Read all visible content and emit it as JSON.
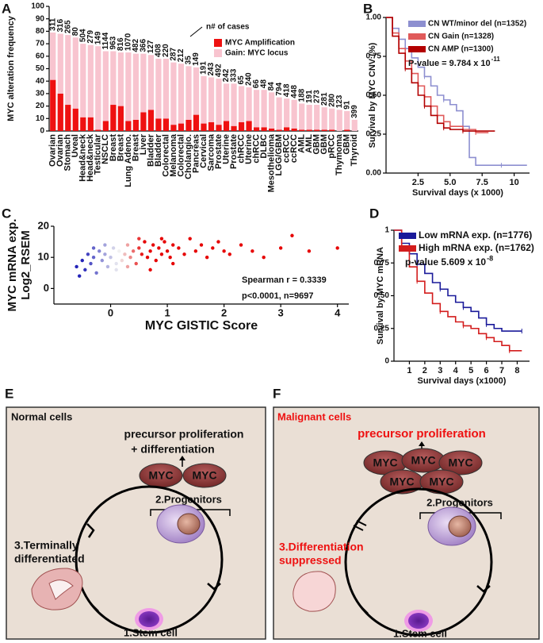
{
  "chart_data": [
    {
      "panel": "A",
      "type": "bar",
      "stacked": true,
      "ylabel": "MYC alteration frequency",
      "categories": [
        "Ovarian",
        "Ovarian",
        "Stomach",
        "Uveal",
        "Head&neck",
        "Head&neck",
        "Testicular",
        "NSCLC",
        "Breast",
        "Breast",
        "Lung Adeno.",
        "Breast",
        "Liver",
        "Bladder",
        "Bladder",
        "Colorectal",
        "Melanoma",
        "Colorectal",
        "Cholangio.",
        "Pancreas",
        "Cervical",
        "Sarcoma",
        "Prostate",
        "Uterine",
        "Prostate",
        "chRCC",
        "Uterine",
        "chRCC",
        "DLBC",
        "Mesothelioma",
        "LGG/GBM",
        "ccRCC",
        "ccRCC",
        "AML",
        "AML",
        "GBM",
        "GBM",
        "pRCC",
        "Thymoma",
        "GBM",
        "Thyroid"
      ],
      "series": [
        {
          "name": "MYC Amplification",
          "color": "#ee1111",
          "values": [
            41,
            30,
            21,
            18,
            11,
            11,
            1,
            8,
            21,
            20,
            8,
            9,
            15,
            17,
            10,
            10,
            5,
            6,
            9,
            13,
            6,
            7,
            5,
            8,
            4,
            7,
            8,
            3,
            3,
            2,
            1,
            3,
            2,
            1,
            1,
            1,
            1,
            1,
            0,
            1,
            0
          ]
        },
        {
          "name": "Gain: MYC locus",
          "color": "#f8c4cf",
          "values": [
            38,
            48,
            56,
            57,
            59,
            58,
            67,
            56,
            43,
            43,
            55,
            53,
            47,
            44,
            48,
            48,
            50,
            48,
            43,
            38,
            38,
            36,
            37,
            30,
            34,
            29,
            27,
            30,
            30,
            29,
            26,
            23,
            23,
            21,
            20,
            20,
            18,
            17,
            17,
            15,
            9
          ]
        }
      ],
      "cases": [
        311,
        316,
        265,
        80,
        504,
        279,
        149,
        1144,
        963,
        816,
        1070,
        482,
        366,
        127,
        408,
        220,
        287,
        212,
        35,
        149,
        191,
        243,
        492,
        242,
        333,
        65,
        240,
        66,
        48,
        84,
        794,
        418,
        448,
        188,
        191,
        273,
        281,
        280,
        123,
        91,
        399
      ],
      "annotation": "n# of cases",
      "ylim": [
        0,
        100
      ],
      "yticks": [
        0,
        10,
        20,
        30,
        40,
        50,
        60,
        70,
        80,
        90,
        100
      ],
      "legend": "upper right"
    },
    {
      "panel": "B",
      "type": "survival",
      "ylabel": "Survival by MYC CNV (%)",
      "xlabel": "Survival days (x 1000)",
      "series": [
        {
          "name": "CN WT/minor del (n=1352)",
          "color": "#8d8fd0",
          "x": [
            0,
            0.5,
            1,
            1.5,
            2,
            2.5,
            3,
            3.5,
            4,
            4.5,
            5,
            5.5,
            6,
            6.5,
            7,
            9,
            11
          ],
          "values": [
            1,
            0.93,
            0.86,
            0.8,
            0.74,
            0.68,
            0.62,
            0.56,
            0.5,
            0.47,
            0.44,
            0.4,
            0.3,
            0.1,
            0.05,
            0.05,
            0.05
          ]
        },
        {
          "name": "CN Gain (n=1328)",
          "color": "#e05a5a",
          "x": [
            0,
            0.5,
            1,
            1.5,
            2,
            2.5,
            3,
            3.5,
            4,
            4.5,
            5,
            6,
            7,
            8
          ],
          "values": [
            1,
            0.9,
            0.8,
            0.72,
            0.64,
            0.56,
            0.49,
            0.43,
            0.37,
            0.33,
            0.3,
            0.28,
            0.26,
            0.26
          ]
        },
        {
          "name": "CN AMP (n=1300)",
          "color": "#b30000",
          "x": [
            0,
            0.5,
            1,
            1.5,
            2,
            2.5,
            3,
            3.5,
            4,
            4.5,
            5,
            5.5,
            6,
            7,
            8.5
          ],
          "values": [
            1,
            0.88,
            0.77,
            0.67,
            0.58,
            0.5,
            0.43,
            0.37,
            0.32,
            0.29,
            0.28,
            0.28,
            0.27,
            0.27,
            0.27
          ]
        }
      ],
      "p_value": "P-value = 9.784 x 10",
      "p_exponent": "-11",
      "xlim": [
        0,
        11.2
      ],
      "xticks": [
        2.5,
        {
          "value": 5,
          "label": "5.0"
        },
        7.5,
        10
      ],
      "ylim": [
        0,
        1
      ],
      "yticks": [
        {
          "value": 0,
          "label": "0.00"
        },
        0.25,
        {
          "value": 0.5,
          "label": "0.50"
        },
        0.75,
        {
          "value": 1,
          "label": "1.00"
        }
      ],
      "legend": "upper right"
    },
    {
      "panel": "C",
      "type": "scatter",
      "ylabel": [
        "MYC mRNA exp.",
        "Log2_RSEM"
      ],
      "xlabel": "MYC GISTIC Score",
      "x": [
        -0.6,
        -0.55,
        -0.5,
        -0.45,
        -0.4,
        -0.35,
        -0.3,
        -0.25,
        -0.2,
        -0.15,
        -0.1,
        -0.05,
        0,
        0.05,
        0.1,
        0.15,
        0.2,
        0.25,
        0.3,
        0.35,
        0.4,
        0.45,
        0.5,
        0.55,
        0.6,
        0.65,
        0.7,
        0.75,
        0.8,
        0.85,
        0.9,
        0.95,
        1,
        1.05,
        1.1,
        1.2,
        1.3,
        1.4,
        1.5,
        1.6,
        1.7,
        1.8,
        1.9,
        2,
        2.1,
        2.3,
        2.5,
        2.7,
        3,
        3.2,
        3.5,
        4,
        -0.3,
        -0.1,
        0.1,
        0.3,
        0.5,
        0.7,
        0.9,
        1.1
      ],
      "values": [
        7,
        4,
        9,
        6,
        11,
        8,
        10,
        5,
        12,
        9,
        11,
        7,
        10,
        13,
        8,
        12,
        9,
        11,
        14,
        10,
        12,
        8,
        13,
        11,
        15,
        10,
        12,
        14,
        9,
        13,
        11,
        15,
        12,
        10,
        14,
        13,
        11,
        16,
        12,
        14,
        10,
        13,
        15,
        12,
        11,
        14,
        12,
        10,
        13,
        17,
        12,
        13,
        13,
        14,
        6,
        7,
        16,
        6,
        16,
        8
      ],
      "color_stops": [
        [
          -0.5,
          "#2424b8"
        ],
        [
          0.15,
          "#f2f2f2"
        ],
        [
          0.6,
          "#e60000"
        ]
      ],
      "annotations": [
        "Spearman r  = 0.3339",
        "p<0.0001, n=9697"
      ],
      "xlim": [
        -1,
        4.2
      ],
      "xticks": [
        0,
        1,
        2,
        3,
        4
      ],
      "ylim": [
        -5,
        20
      ],
      "yticks": [
        0,
        10,
        20
      ]
    },
    {
      "panel": "D",
      "type": "survival",
      "ylabel": "Survival by MYC mRNA",
      "xlabel": "Survival days (x1000)",
      "series": [
        {
          "name": "Low mRNA exp. (n=1776)",
          "color": "#1a1a9a",
          "x": [
            0,
            0.5,
            1,
            1.5,
            2,
            2.5,
            3,
            3.5,
            4,
            4.5,
            5,
            5.5,
            6,
            6.5,
            7,
            8.3
          ],
          "values": [
            1,
            0.9,
            0.82,
            0.74,
            0.67,
            0.6,
            0.55,
            0.5,
            0.45,
            0.41,
            0.38,
            0.33,
            0.28,
            0.25,
            0.23,
            0.23
          ]
        },
        {
          "name": "High mRNA exp. (n=1762)",
          "color": "#d31c1c",
          "x": [
            0,
            0.5,
            1,
            1.5,
            2,
            2.5,
            3,
            3.5,
            4,
            4.5,
            5,
            5.5,
            6,
            6.5,
            7,
            7.5,
            8.3
          ],
          "values": [
            1,
            0.85,
            0.72,
            0.61,
            0.52,
            0.44,
            0.38,
            0.34,
            0.3,
            0.27,
            0.25,
            0.21,
            0.18,
            0.15,
            0.12,
            0.08,
            0.08
          ]
        }
      ],
      "p_value": "p-value 5.609 x 10",
      "p_exponent": "-8",
      "xlim": [
        0,
        8.8
      ],
      "xticks": [
        1,
        2,
        3,
        4,
        5,
        6,
        7,
        8
      ],
      "ylim": [
        0,
        1
      ],
      "yticks": [
        0,
        0.25,
        {
          "value": 0.5,
          "label": "0.50"
        },
        0.75,
        1
      ],
      "legend": "upper right"
    }
  ],
  "diagrams": {
    "E": {
      "panel": "E",
      "title": "Normal cells",
      "process": "precursor proliferation",
      "process2": "+ differentiation",
      "myc": [
        "MYC",
        "MYC"
      ],
      "progenitors": "2.Progenitors",
      "terminal": [
        "3.Terminally",
        "differentiated"
      ],
      "stem": "1.Stem cell"
    },
    "F": {
      "panel": "F",
      "title": "Malignant cells",
      "process": "precursor proliferation",
      "myc": [
        "MYC",
        "MYC",
        "MYC",
        "MYC",
        "MYC"
      ],
      "progenitors": "2.Progenitors",
      "terminal": [
        "3.Differentiation",
        "suppressed"
      ],
      "stem": "1.Stem cell"
    }
  }
}
